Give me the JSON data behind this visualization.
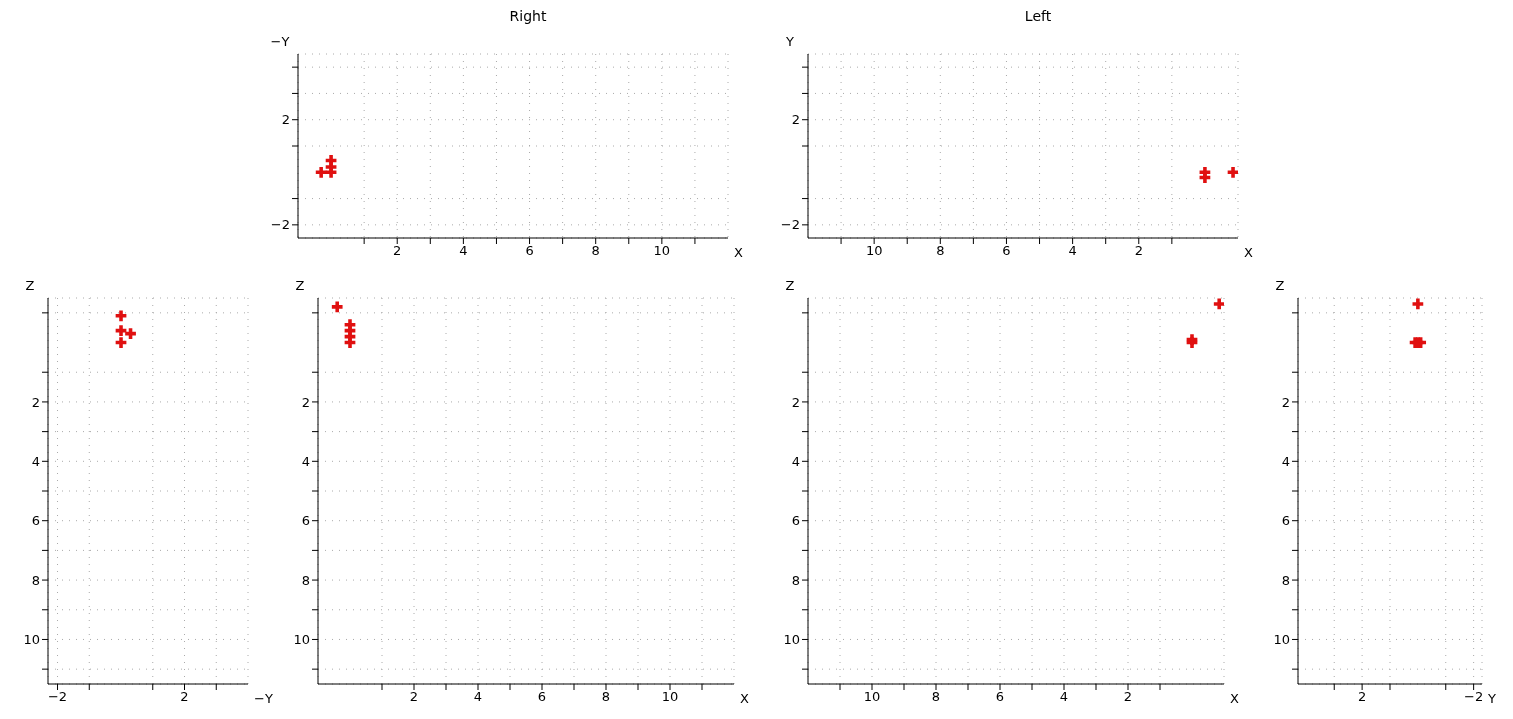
{
  "chart_data": [
    {
      "type": "scatter",
      "title": "Right",
      "xlabel": "X",
      "ylabel": "−Y",
      "x": [
        0,
        0,
        0,
        -0.3
      ],
      "values": [
        0,
        0.2,
        0.45,
        0
      ],
      "color": "#e01010",
      "marker": "cross",
      "grid": true,
      "xlim": [
        -1,
        12
      ],
      "ylim": [
        -2.5,
        4.5
      ],
      "xticks": [
        {
          "value": 1,
          "label": null
        },
        2,
        {
          "value": 3,
          "label": null
        },
        4,
        {
          "value": 5,
          "label": null
        },
        6,
        {
          "value": 7,
          "label": null
        },
        8,
        {
          "value": 9,
          "label": null
        },
        10,
        {
          "value": 11,
          "label": null
        }
      ],
      "yticks": [
        {
          "value": -2,
          "label": "−2"
        },
        {
          "value": -1,
          "label": null
        },
        {
          "value": 1,
          "label": null
        },
        2,
        {
          "value": 3,
          "label": null
        },
        {
          "value": 4,
          "label": null
        }
      ]
    },
    {
      "type": "scatter",
      "title": "Left",
      "xlabel": "X",
      "ylabel": "Y",
      "x": [
        0,
        0,
        -0.85
      ],
      "values": [
        0,
        -0.2,
        0
      ],
      "color": "#e01010",
      "marker": "cross",
      "grid": true,
      "xlim": [
        12,
        -1
      ],
      "ylim": [
        -2.5,
        4.5
      ],
      "xticks": [
        {
          "value": 11,
          "label": null
        },
        10,
        {
          "value": 9,
          "label": null
        },
        8,
        {
          "value": 7,
          "label": null
        },
        6,
        {
          "value": 5,
          "label": null
        },
        4,
        {
          "value": 3,
          "label": null
        },
        2,
        {
          "value": 1,
          "label": null
        }
      ],
      "yticks": [
        {
          "value": -2,
          "label": "−2"
        },
        {
          "value": -1,
          "label": null
        },
        {
          "value": 1,
          "label": null
        },
        2,
        {
          "value": 3,
          "label": null
        },
        {
          "value": 4,
          "label": null
        }
      ]
    },
    {
      "type": "scatter",
      "xlabel": "−Y",
      "ylabel": "Z",
      "x": [
        0,
        0,
        0.3,
        0
      ],
      "values": [
        0,
        -0.4,
        -0.3,
        -0.9
      ],
      "color": "#e01010",
      "marker": "cross",
      "grid": true,
      "xlim": [
        -2.3,
        4
      ],
      "ylim": [
        11.5,
        -1.5
      ],
      "xticks": [
        {
          "value": -2,
          "label": "−2"
        },
        {
          "value": -1,
          "label": null
        },
        {
          "value": 1,
          "label": null
        },
        2,
        {
          "value": 3,
          "label": null
        }
      ],
      "yticks": [
        {
          "value": -1,
          "label": null
        },
        {
          "value": 1,
          "label": null
        },
        2,
        {
          "value": 3,
          "label": null
        },
        4,
        {
          "value": 5,
          "label": null
        },
        6,
        {
          "value": 7,
          "label": null
        },
        8,
        {
          "value": 9,
          "label": null
        },
        10,
        {
          "value": 11,
          "label": null
        }
      ]
    },
    {
      "type": "scatter",
      "xlabel": "X",
      "ylabel": "Z",
      "x": [
        0,
        0,
        0,
        0,
        -0.4
      ],
      "values": [
        0,
        -0.2,
        -0.4,
        -0.6,
        -1.2
      ],
      "color": "#e01010",
      "marker": "cross",
      "grid": true,
      "xlim": [
        -1,
        12
      ],
      "ylim": [
        11.5,
        -1.5
      ],
      "xticks": [
        {
          "value": 1,
          "label": null
        },
        2,
        {
          "value": 3,
          "label": null
        },
        4,
        {
          "value": 5,
          "label": null
        },
        6,
        {
          "value": 7,
          "label": null
        },
        8,
        {
          "value": 9,
          "label": null
        },
        10,
        {
          "value": 11,
          "label": null
        }
      ],
      "yticks": [
        {
          "value": -1,
          "label": null
        },
        {
          "value": 1,
          "label": null
        },
        2,
        {
          "value": 3,
          "label": null
        },
        4,
        {
          "value": 5,
          "label": null
        },
        6,
        {
          "value": 7,
          "label": null
        },
        8,
        {
          "value": 9,
          "label": null
        },
        10,
        {
          "value": 11,
          "label": null
        }
      ]
    },
    {
      "type": "scatter",
      "xlabel": "X",
      "ylabel": "Z",
      "x": [
        0,
        0,
        -0.85
      ],
      "values": [
        0,
        -0.1,
        -1.3
      ],
      "color": "#e01010",
      "marker": "cross",
      "grid": true,
      "xlim": [
        12,
        -1
      ],
      "ylim": [
        11.5,
        -1.5
      ],
      "xticks": [
        {
          "value": 11,
          "label": null
        },
        10,
        {
          "value": 9,
          "label": null
        },
        8,
        {
          "value": 7,
          "label": null
        },
        6,
        {
          "value": 5,
          "label": null
        },
        4,
        {
          "value": 3,
          "label": null
        },
        2,
        {
          "value": 1,
          "label": null
        }
      ],
      "yticks": [
        {
          "value": -1,
          "label": null
        },
        {
          "value": 1,
          "label": null
        },
        2,
        {
          "value": 3,
          "label": null
        },
        4,
        {
          "value": 5,
          "label": null
        },
        6,
        {
          "value": 7,
          "label": null
        },
        8,
        {
          "value": 9,
          "label": null
        },
        10,
        {
          "value": 11,
          "label": null
        }
      ]
    },
    {
      "type": "scatter",
      "xlabel": "Y",
      "ylabel": "Z",
      "x": [
        0.1,
        -0.1,
        0,
        0
      ],
      "values": [
        0,
        0,
        0,
        -1.3
      ],
      "color": "#e01010",
      "marker": "cross",
      "grid": true,
      "xlim": [
        4.3,
        -2.3
      ],
      "ylim": [
        11.5,
        -1.5
      ],
      "xticks": [
        {
          "value": 3,
          "label": null
        },
        2,
        {
          "value": 1,
          "label": null
        },
        {
          "value": -1,
          "label": null
        },
        {
          "value": -2,
          "label": "−2"
        }
      ],
      "yticks": [
        {
          "value": -1,
          "label": null
        },
        {
          "value": 1,
          "label": null
        },
        2,
        {
          "value": 3,
          "label": null
        },
        4,
        {
          "value": 5,
          "label": null
        },
        6,
        {
          "value": 7,
          "label": null
        },
        8,
        {
          "value": 9,
          "label": null
        },
        10,
        {
          "value": 11,
          "label": null
        }
      ]
    }
  ]
}
